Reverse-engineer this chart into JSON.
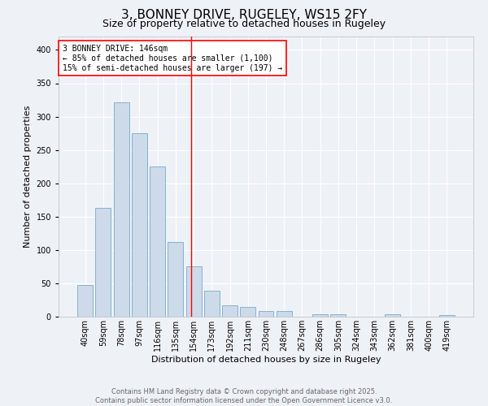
{
  "title": "3, BONNEY DRIVE, RUGELEY, WS15 2FY",
  "subtitle": "Size of property relative to detached houses in Rugeley",
  "xlabel": "Distribution of detached houses by size in Rugeley",
  "ylabel": "Number of detached properties",
  "bar_labels": [
    "40sqm",
    "59sqm",
    "78sqm",
    "97sqm",
    "116sqm",
    "135sqm",
    "154sqm",
    "173sqm",
    "192sqm",
    "211sqm",
    "230sqm",
    "248sqm",
    "267sqm",
    "286sqm",
    "305sqm",
    "324sqm",
    "343sqm",
    "362sqm",
    "381sqm",
    "400sqm",
    "419sqm"
  ],
  "bar_values": [
    48,
    163,
    321,
    275,
    225,
    112,
    75,
    39,
    17,
    15,
    9,
    8,
    0,
    4,
    4,
    0,
    0,
    4,
    0,
    0,
    2
  ],
  "bar_color": "#ccdaea",
  "bar_edge_color": "#7aaac8",
  "vline_x": 5.88,
  "vline_color": "red",
  "annotation_text": "3 BONNEY DRIVE: 146sqm\n← 85% of detached houses are smaller (1,100)\n15% of semi-detached houses are larger (197) →",
  "annotation_box_color": "white",
  "annotation_box_edge_color": "red",
  "ylim": [
    0,
    420
  ],
  "yticks": [
    0,
    50,
    100,
    150,
    200,
    250,
    300,
    350,
    400
  ],
  "footer_text": "Contains HM Land Registry data © Crown copyright and database right 2025.\nContains public sector information licensed under the Open Government Licence v3.0.",
  "background_color": "#eef2f7",
  "grid_color": "white",
  "title_fontsize": 11,
  "subtitle_fontsize": 9,
  "axis_label_fontsize": 8,
  "tick_fontsize": 7,
  "annotation_fontsize": 7,
  "footer_fontsize": 6
}
